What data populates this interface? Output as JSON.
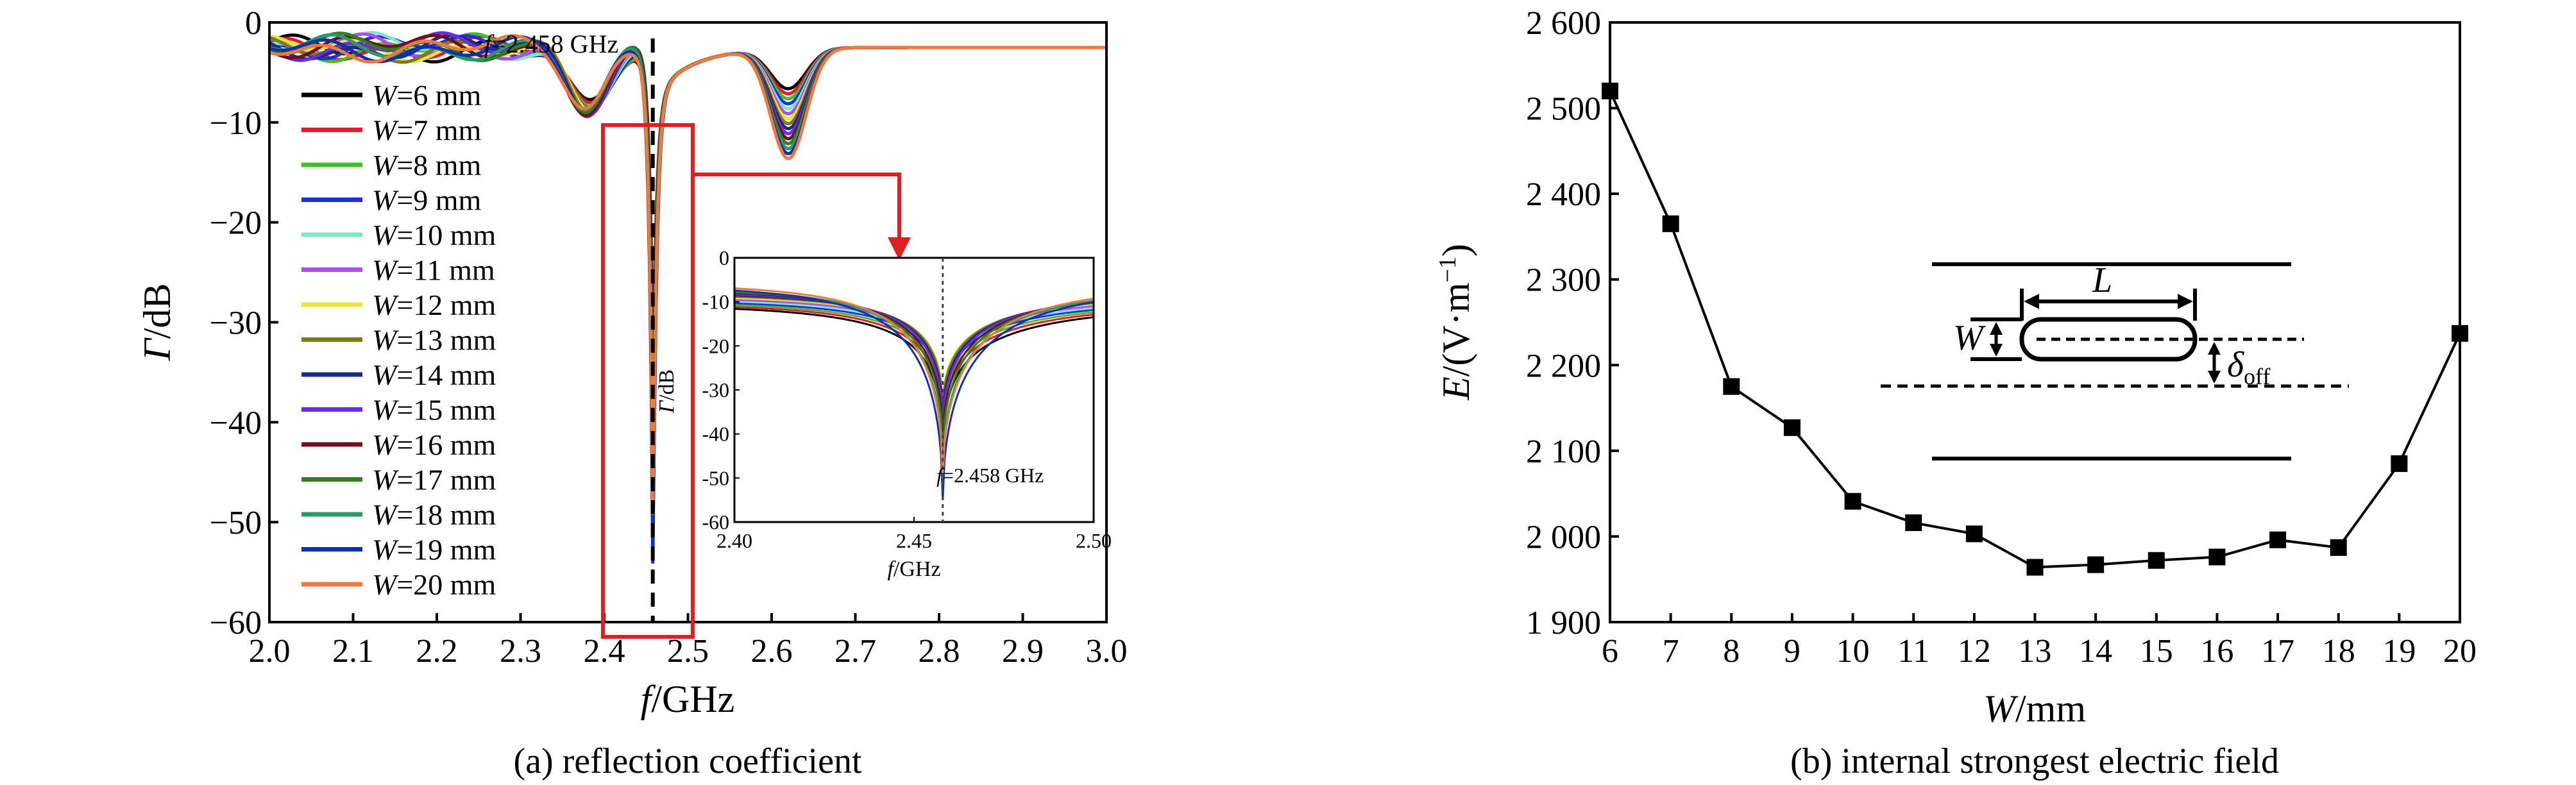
{
  "figure": {
    "caption_a": "(a) reflection coefficient",
    "caption_b": "(b) internal strongest electric field"
  },
  "chart_data": [
    {
      "type": "line",
      "panel": "a",
      "title": "",
      "xlabel_var": "f",
      "xlabel_unit": "/GHz",
      "ylabel_var": "Γ",
      "ylabel_unit": "/dB",
      "xlim": [
        2.0,
        3.0
      ],
      "ylim": [
        -60,
        0
      ],
      "xticks": [
        "2.0",
        "2.1",
        "2.2",
        "2.3",
        "2.4",
        "2.5",
        "2.6",
        "2.7",
        "2.8",
        "2.9",
        "3.0"
      ],
      "yticks": [
        "0",
        "−10",
        "−20",
        "−30",
        "−40",
        "−50",
        "−60"
      ],
      "legend_position": "left",
      "annotation": "=2.458 GHz",
      "annotation_var": "f",
      "resonance_ghz": 2.458,
      "series": [
        {
          "name": "W=6 mm",
          "var": "W",
          "value": "=6 mm",
          "color": "#000000",
          "min_db": -43,
          "dip2_db": -6.5
        },
        {
          "name": "W=7 mm",
          "var": "W",
          "value": "=7 mm",
          "color": "#e8192c",
          "min_db": -40,
          "dip2_db": -7.0
        },
        {
          "name": "W=8 mm",
          "var": "W",
          "value": "=8 mm",
          "color": "#3fc21f",
          "min_db": -38,
          "dip2_db": -7.5
        },
        {
          "name": "W=9 mm",
          "var": "W",
          "value": "=9 mm",
          "color": "#1f2ee0",
          "min_db": -36,
          "dip2_db": -8.0
        },
        {
          "name": "W=10 mm",
          "var": "W",
          "value": "=10 mm",
          "color": "#7de8c8",
          "min_db": -35,
          "dip2_db": -8.5
        },
        {
          "name": "W=11 mm",
          "var": "W",
          "value": "=11 mm",
          "color": "#b04ce8",
          "min_db": -34,
          "dip2_db": -9.0
        },
        {
          "name": "W=12 mm",
          "var": "W",
          "value": "=12 mm",
          "color": "#e6e633",
          "min_db": -33,
          "dip2_db": -9.5
        },
        {
          "name": "W=13 mm",
          "var": "W",
          "value": "=13 mm",
          "color": "#7d7a1a",
          "min_db": -34,
          "dip2_db": -10.0
        },
        {
          "name": "W=14 mm",
          "var": "W",
          "value": "=14 mm",
          "color": "#1a2a8a",
          "min_db": -36,
          "dip2_db": -10.5
        },
        {
          "name": "W=15 mm",
          "var": "W",
          "value": "=15 mm",
          "color": "#6a2ee0",
          "min_db": -38,
          "dip2_db": -11.0
        },
        {
          "name": "W=16 mm",
          "var": "W",
          "value": "=16 mm",
          "color": "#6e1020",
          "min_db": -41,
          "dip2_db": -11.5
        },
        {
          "name": "W=17 mm",
          "var": "W",
          "value": "=17 mm",
          "color": "#2f7f1a",
          "min_db": -44,
          "dip2_db": -12.0
        },
        {
          "name": "W=18 mm",
          "var": "W",
          "value": "=18 mm",
          "color": "#2a9a6a",
          "min_db": -48,
          "dip2_db": -12.5
        },
        {
          "name": "W=19 mm",
          "var": "W",
          "value": "=19 mm",
          "color": "#1030b0",
          "min_db": -55,
          "dip2_db": -13.0
        },
        {
          "name": "W=20 mm",
          "var": "W",
          "value": "=20 mm",
          "color": "#f07a3a",
          "min_db": -50,
          "dip2_db": -13.5
        }
      ],
      "inset": {
        "xlim": [
          2.4,
          2.5
        ],
        "ylim": [
          -60,
          0
        ],
        "xticks": [
          "2.40",
          "2.45",
          "2.50"
        ],
        "yticks": [
          "0",
          "-10",
          "-20",
          "-30",
          "-40",
          "-50",
          "-60"
        ],
        "xlabel_var": "f",
        "xlabel_unit": "/GHz",
        "ylabel_var": "Γ",
        "ylabel_unit": "/dB",
        "annotation": "=2.458 GHz",
        "annotation_var": "f"
      }
    },
    {
      "type": "line",
      "panel": "b",
      "title": "",
      "xlabel_var": "W",
      "xlabel_unit": "/mm",
      "ylabel_var": "E",
      "ylabel_unit": "/(V·m",
      "ylabel_sup": "−1",
      "ylabel_close": ")",
      "xlim": [
        6,
        20
      ],
      "ylim": [
        1900,
        2600
      ],
      "xticks": [
        "6",
        "7",
        "8",
        "9",
        "10",
        "11",
        "12",
        "13",
        "14",
        "15",
        "16",
        "17",
        "18",
        "19",
        "20"
      ],
      "yticks": [
        "1 900",
        "2 000",
        "2 100",
        "2 200",
        "2 300",
        "2 400",
        "2 500",
        "2 600"
      ],
      "x": [
        6,
        7,
        8,
        9,
        10,
        11,
        12,
        13,
        14,
        15,
        16,
        17,
        18,
        19,
        20
      ],
      "y": [
        2520,
        2365,
        2175,
        2127,
        2041,
        2016,
        2003,
        1964,
        1967,
        1972,
        1976,
        1996,
        1987,
        2085,
        2237
      ],
      "marker": "square",
      "color": "#000000",
      "diagram": {
        "label_L": "L",
        "label_W": "W",
        "label_delta": "δ",
        "label_delta_sub": "off"
      }
    }
  ]
}
